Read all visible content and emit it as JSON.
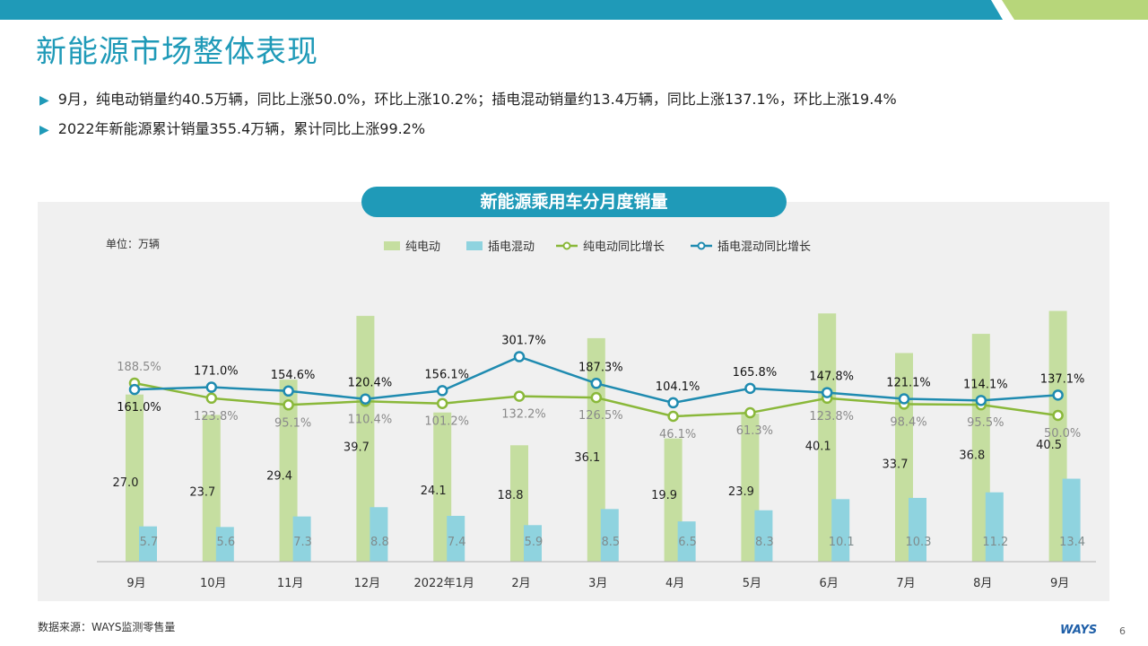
{
  "page": {
    "title": "新能源市场整体表现",
    "bullets": [
      "9月，纯电动销量约40.5万辆，同比上涨50.0%，环比上涨10.2%；插电混动销量约13.4万辆，同比上涨137.1%，环比上涨19.4%",
      "2022年新能源累计销量355.4万辆，累计同比上涨99.2%"
    ],
    "source": "数据来源：WAYS监测零售量",
    "page_number": "6",
    "logo_text": "WAYS"
  },
  "colors": {
    "brand_blue": "#1f9ab8",
    "top_green": "#b7d67a",
    "ev_bar": "#c5dea0",
    "phev_bar": "#8fd3df",
    "ev_line": "#8ab83a",
    "phev_line": "#1f8bb0"
  },
  "chart_data": {
    "type": "bar",
    "title": "新能源乘用车分月度销量",
    "unit_label": "单位：万辆",
    "categories": [
      "9月",
      "10月",
      "11月",
      "12月",
      "2022年1月",
      "2月",
      "3月",
      "4月",
      "5月",
      "6月",
      "7月",
      "8月",
      "9月"
    ],
    "series": [
      {
        "name": "纯电动",
        "type": "bar",
        "values": [
          27.0,
          23.7,
          29.4,
          39.7,
          24.1,
          18.8,
          36.1,
          19.9,
          23.9,
          40.1,
          33.7,
          36.8,
          40.5
        ],
        "labels": [
          "27.0",
          "23.7",
          "29.4",
          "39.7",
          "24.1",
          "18.8",
          "36.1",
          "19.9",
          "23.9",
          "40.1",
          "33.7",
          "36.8",
          "40.5"
        ]
      },
      {
        "name": "插电混动",
        "type": "bar",
        "values": [
          5.7,
          5.6,
          7.3,
          8.8,
          7.4,
          5.9,
          8.5,
          6.5,
          8.3,
          10.1,
          10.3,
          11.2,
          13.4
        ],
        "labels": [
          "5.7",
          "5.6",
          "7.3",
          "8.8",
          "7.4",
          "5.9",
          "8.5",
          "6.5",
          "8.3",
          "10.1",
          "10.3",
          "11.2",
          "13.4"
        ]
      },
      {
        "name": "纯电动同比增长",
        "type": "line",
        "values": [
          188.5,
          123.8,
          95.1,
          110.4,
          101.2,
          132.2,
          126.5,
          46.1,
          61.3,
          123.8,
          98.4,
          95.5,
          50.0
        ],
        "labels": [
          "188.5%",
          "123.8%",
          "95.1%",
          "110.4%",
          "101.2%",
          "132.2%",
          "126.5%",
          "46.1%",
          "61.3%",
          "123.8%",
          "98.4%",
          "95.5%",
          "50.0%"
        ]
      },
      {
        "name": "插电混动同比增长",
        "type": "line",
        "values": [
          161.0,
          171.0,
          154.6,
          120.4,
          156.1,
          301.7,
          187.3,
          104.1,
          165.8,
          147.8,
          121.1,
          114.1,
          137.1
        ],
        "labels": [
          "161.0%",
          "171.0%",
          "154.6%",
          "120.4%",
          "156.1%",
          "301.7%",
          "187.3%",
          "104.1%",
          "165.8%",
          "147.8%",
          "121.1%",
          "114.1%",
          "137.1%"
        ]
      }
    ],
    "legend_position": "top",
    "grid": false
  }
}
